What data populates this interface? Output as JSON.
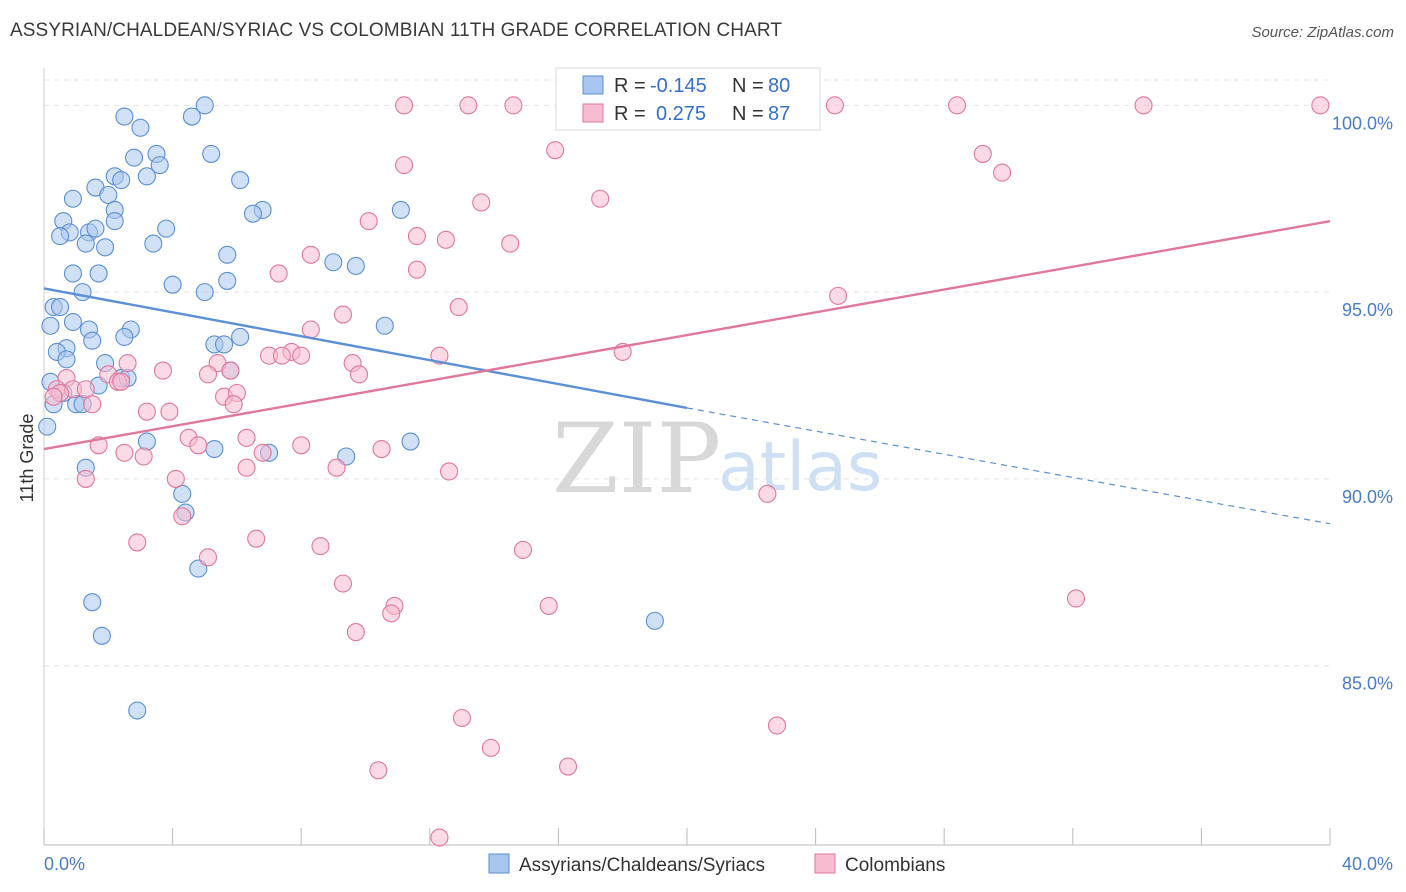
{
  "chart_data": {
    "type": "scatter",
    "title": "ASSYRIAN/CHALDEAN/SYRIAC VS COLOMBIAN 11TH GRADE CORRELATION CHART",
    "source": "Source: ZipAtlas.com",
    "ylabel": "11th Grade",
    "xlabel": "",
    "xlim": [
      0,
      40
    ],
    "ylim": [
      80.2,
      101.0
    ],
    "y_ticks": [
      {
        "value": 100,
        "label": "100.0%"
      },
      {
        "value": 95,
        "label": "95.0%"
      },
      {
        "value": 90,
        "label": "90.0%"
      },
      {
        "value": 85,
        "label": "85.0%"
      }
    ],
    "x_ticks": [
      {
        "value": 0,
        "label": "0.0%"
      },
      {
        "value": 40,
        "label": "40.0%"
      }
    ],
    "grid": true,
    "legend": {
      "position": "top-center",
      "rows": [
        {
          "r_label": "R =",
          "r_value": "-0.145",
          "n_label": "N =",
          "n_value": "80"
        },
        {
          "r_label": "R =",
          "r_value": "0.275",
          "n_label": "N =",
          "n_value": "87"
        }
      ]
    },
    "watermark": {
      "zip": "ZIP",
      "atlas": "atlas"
    },
    "series": [
      {
        "name": "Assyrians/Chaldeans/Syriacs",
        "color": "#5b8fd6",
        "fill": "#a9c6ee",
        "trend": {
          "x0": 0,
          "y0": 95.1,
          "x1": 20,
          "y1": 91.9,
          "dash_x1": 40,
          "dash_y1": 88.8
        },
        "points": [
          [
            2.5,
            99.7
          ],
          [
            4.6,
            99.7
          ],
          [
            5.0,
            100.0
          ],
          [
            3.0,
            99.4
          ],
          [
            2.8,
            98.6
          ],
          [
            3.5,
            98.7
          ],
          [
            5.2,
            98.7
          ],
          [
            3.6,
            98.4
          ],
          [
            2.2,
            98.1
          ],
          [
            3.2,
            98.1
          ],
          [
            2.4,
            98.0
          ],
          [
            6.1,
            98.0
          ],
          [
            1.6,
            97.8
          ],
          [
            2.0,
            97.6
          ],
          [
            0.9,
            97.5
          ],
          [
            2.2,
            97.2
          ],
          [
            6.8,
            97.2
          ],
          [
            11.1,
            97.2
          ],
          [
            6.5,
            97.1
          ],
          [
            0.6,
            96.9
          ],
          [
            2.2,
            96.9
          ],
          [
            1.4,
            96.6
          ],
          [
            1.6,
            96.7
          ],
          [
            0.8,
            96.6
          ],
          [
            3.8,
            96.7
          ],
          [
            0.5,
            96.5
          ],
          [
            1.3,
            96.3
          ],
          [
            1.9,
            96.2
          ],
          [
            3.4,
            96.3
          ],
          [
            5.7,
            96.0
          ],
          [
            9.0,
            95.8
          ],
          [
            9.7,
            95.7
          ],
          [
            0.9,
            95.5
          ],
          [
            1.7,
            95.5
          ],
          [
            4.0,
            95.2
          ],
          [
            5.7,
            95.3
          ],
          [
            1.2,
            95.0
          ],
          [
            5.0,
            95.0
          ],
          [
            0.3,
            94.6
          ],
          [
            0.5,
            94.6
          ],
          [
            0.9,
            94.2
          ],
          [
            0.2,
            94.1
          ],
          [
            10.6,
            94.1
          ],
          [
            1.4,
            94.0
          ],
          [
            2.7,
            94.0
          ],
          [
            2.5,
            93.8
          ],
          [
            6.1,
            93.8
          ],
          [
            1.5,
            93.7
          ],
          [
            5.3,
            93.6
          ],
          [
            5.6,
            93.6
          ],
          [
            0.7,
            93.5
          ],
          [
            0.4,
            93.4
          ],
          [
            0.7,
            93.2
          ],
          [
            1.9,
            93.1
          ],
          [
            5.8,
            92.9
          ],
          [
            2.4,
            92.7
          ],
          [
            2.6,
            92.7
          ],
          [
            0.2,
            92.6
          ],
          [
            0.6,
            92.3
          ],
          [
            1.7,
            92.5
          ],
          [
            0.3,
            92.0
          ],
          [
            1.0,
            92.0
          ],
          [
            1.2,
            92.0
          ],
          [
            0.1,
            91.4
          ],
          [
            3.2,
            91.0
          ],
          [
            11.4,
            91.0
          ],
          [
            5.3,
            90.8
          ],
          [
            7.0,
            90.7
          ],
          [
            9.4,
            90.6
          ],
          [
            1.3,
            90.3
          ],
          [
            4.3,
            89.6
          ],
          [
            4.4,
            89.1
          ],
          [
            4.8,
            87.6
          ],
          [
            1.5,
            86.7
          ],
          [
            19.0,
            86.2
          ],
          [
            1.8,
            85.8
          ],
          [
            2.9,
            83.8
          ]
        ]
      },
      {
        "name": "Colombians",
        "color": "#e0779c",
        "fill": "#f7bcd0",
        "trend": {
          "x0": 0,
          "y0": 90.8,
          "x1": 40,
          "y1": 96.9
        },
        "points": [
          [
            11.2,
            100.0
          ],
          [
            13.2,
            100.0
          ],
          [
            14.6,
            100.0
          ],
          [
            24.6,
            100.0
          ],
          [
            28.4,
            100.0
          ],
          [
            34.2,
            100.0
          ],
          [
            39.7,
            100.0
          ],
          [
            15.9,
            98.8
          ],
          [
            29.2,
            98.7
          ],
          [
            11.2,
            98.4
          ],
          [
            29.8,
            98.2
          ],
          [
            17.3,
            97.5
          ],
          [
            13.6,
            97.4
          ],
          [
            10.1,
            96.9
          ],
          [
            11.6,
            96.5
          ],
          [
            12.5,
            96.4
          ],
          [
            14.5,
            96.3
          ],
          [
            8.3,
            96.0
          ],
          [
            11.6,
            95.6
          ],
          [
            7.3,
            95.5
          ],
          [
            24.7,
            94.9
          ],
          [
            12.9,
            94.6
          ],
          [
            9.3,
            94.4
          ],
          [
            8.3,
            94.0
          ],
          [
            18.0,
            93.4
          ],
          [
            12.3,
            93.3
          ],
          [
            7.7,
            93.4
          ],
          [
            7.0,
            93.3
          ],
          [
            7.4,
            93.3
          ],
          [
            8.0,
            93.3
          ],
          [
            5.4,
            93.1
          ],
          [
            9.6,
            93.1
          ],
          [
            2.6,
            93.1
          ],
          [
            3.7,
            92.9
          ],
          [
            5.8,
            92.9
          ],
          [
            9.8,
            92.8
          ],
          [
            5.1,
            92.8
          ],
          [
            2.0,
            92.8
          ],
          [
            2.3,
            92.6
          ],
          [
            0.7,
            92.7
          ],
          [
            2.4,
            92.6
          ],
          [
            0.4,
            92.4
          ],
          [
            0.9,
            92.4
          ],
          [
            1.3,
            92.4
          ],
          [
            0.5,
            92.3
          ],
          [
            5.6,
            92.2
          ],
          [
            6.0,
            92.3
          ],
          [
            0.3,
            92.2
          ],
          [
            5.9,
            92.0
          ],
          [
            1.5,
            92.0
          ],
          [
            3.2,
            91.8
          ],
          [
            3.9,
            91.8
          ],
          [
            4.5,
            91.1
          ],
          [
            6.3,
            91.1
          ],
          [
            8.0,
            90.9
          ],
          [
            1.7,
            90.9
          ],
          [
            4.8,
            90.9
          ],
          [
            10.5,
            90.8
          ],
          [
            2.5,
            90.7
          ],
          [
            6.8,
            90.7
          ],
          [
            3.1,
            90.6
          ],
          [
            6.3,
            90.3
          ],
          [
            9.1,
            90.3
          ],
          [
            12.6,
            90.2
          ],
          [
            4.1,
            90.0
          ],
          [
            1.3,
            90.0
          ],
          [
            22.5,
            89.6
          ],
          [
            4.3,
            89.0
          ],
          [
            6.6,
            88.4
          ],
          [
            2.9,
            88.3
          ],
          [
            8.6,
            88.2
          ],
          [
            14.9,
            88.1
          ],
          [
            5.1,
            87.9
          ],
          [
            9.3,
            87.2
          ],
          [
            32.1,
            86.8
          ],
          [
            10.9,
            86.6
          ],
          [
            15.7,
            86.6
          ],
          [
            10.8,
            86.4
          ],
          [
            9.7,
            85.9
          ],
          [
            13.0,
            83.6
          ],
          [
            22.8,
            83.4
          ],
          [
            13.9,
            82.8
          ],
          [
            16.3,
            82.3
          ],
          [
            10.4,
            82.2
          ],
          [
            12.3,
            80.4
          ]
        ]
      }
    ]
  }
}
